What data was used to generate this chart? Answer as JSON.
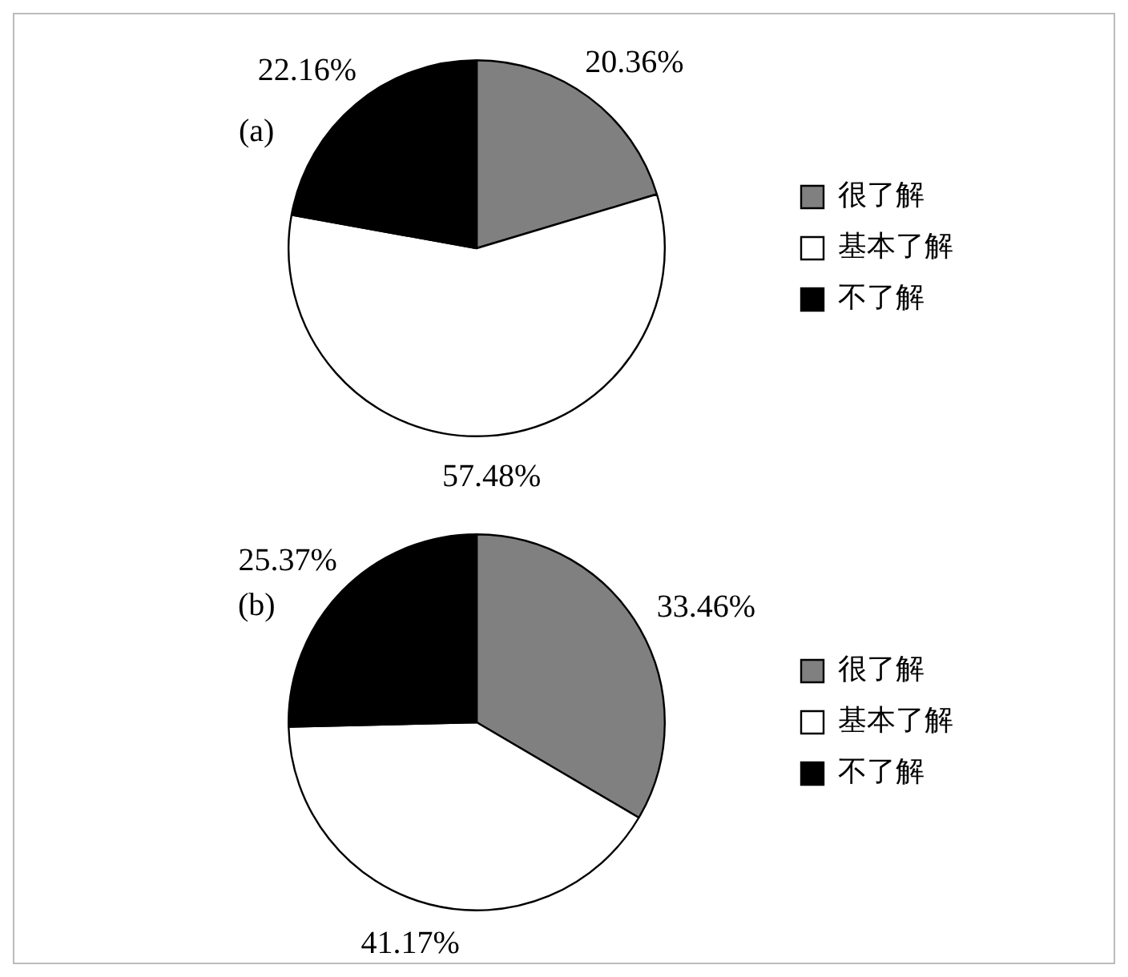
{
  "chart_data": [
    {
      "type": "pie",
      "title": "(a)",
      "categories": [
        "很了解",
        "基本了解",
        "不了解"
      ],
      "values": [
        20.36,
        57.48,
        22.16
      ],
      "value_labels": [
        "20.36%",
        "57.48%",
        "22.16%"
      ],
      "colors": [
        "#808080",
        "#ffffff",
        "#000000"
      ],
      "legend": "right"
    },
    {
      "type": "pie",
      "title": "(b)",
      "categories": [
        "很了解",
        "基本了解",
        "不了解"
      ],
      "values": [
        33.46,
        41.17,
        25.37
      ],
      "value_labels": [
        "33.46%",
        "41.17%",
        "25.37%"
      ],
      "colors": [
        "#808080",
        "#ffffff",
        "#000000"
      ],
      "legend": "right"
    }
  ]
}
